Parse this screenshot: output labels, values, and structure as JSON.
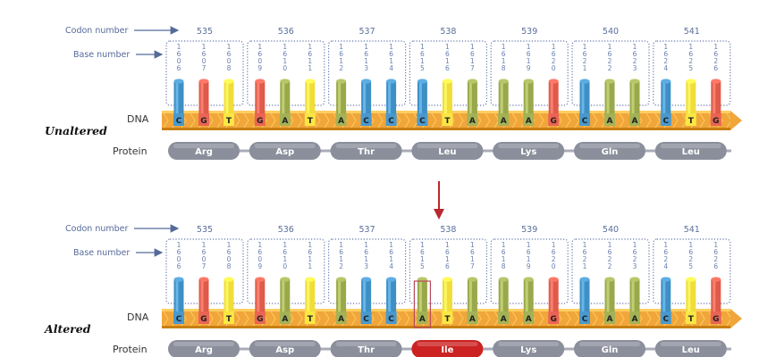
{
  "labels": {
    "codon_number": "Codon number",
    "base_number": "Base number",
    "dna": "DNA",
    "protein": "Protein"
  },
  "colors": {
    "A": "#9aa84c",
    "C": "#3f8fc4",
    "G": "#e05a4a",
    "T": "#f0dd3a",
    "protein_pill": "#8b8e9b",
    "mutant_pill": "#cc2222",
    "strand": "#f0a63a",
    "highlight": "#b84a5a",
    "arrow": "#b8282e"
  },
  "panels": [
    {
      "state": "Unaltered",
      "codons": [
        {
          "number": "535",
          "bases": [
            "C",
            "G",
            "T"
          ],
          "base_numbers": [
            "1606",
            "1607",
            "1608"
          ],
          "amino_acid": "Arg",
          "mutated": false
        },
        {
          "number": "536",
          "bases": [
            "G",
            "A",
            "T"
          ],
          "base_numbers": [
            "1609",
            "1610",
            "1611"
          ],
          "amino_acid": "Asp",
          "mutated": false
        },
        {
          "number": "537",
          "bases": [
            "A",
            "C",
            "C"
          ],
          "base_numbers": [
            "1612",
            "1613",
            "1614"
          ],
          "amino_acid": "Thr",
          "mutated": false
        },
        {
          "number": "538",
          "bases": [
            "C",
            "T",
            "A"
          ],
          "base_numbers": [
            "1615",
            "1616",
            "1617"
          ],
          "amino_acid": "Leu",
          "mutated": false
        },
        {
          "number": "539",
          "bases": [
            "A",
            "A",
            "G"
          ],
          "base_numbers": [
            "1618",
            "1619",
            "1620"
          ],
          "amino_acid": "Lys",
          "mutated": false
        },
        {
          "number": "540",
          "bases": [
            "C",
            "A",
            "A"
          ],
          "base_numbers": [
            "1621",
            "1622",
            "1623"
          ],
          "amino_acid": "Gln",
          "mutated": false
        },
        {
          "number": "541",
          "bases": [
            "C",
            "T",
            "G"
          ],
          "base_numbers": [
            "1624",
            "1625",
            "1626"
          ],
          "amino_acid": "Leu",
          "mutated": false
        }
      ]
    },
    {
      "state": "Altered",
      "codons": [
        {
          "number": "535",
          "bases": [
            "C",
            "G",
            "T"
          ],
          "base_numbers": [
            "1606",
            "1607",
            "1608"
          ],
          "amino_acid": "Arg",
          "mutated": false
        },
        {
          "number": "536",
          "bases": [
            "G",
            "A",
            "T"
          ],
          "base_numbers": [
            "1609",
            "1610",
            "1611"
          ],
          "amino_acid": "Asp",
          "mutated": false
        },
        {
          "number": "537",
          "bases": [
            "A",
            "C",
            "C"
          ],
          "base_numbers": [
            "1612",
            "1613",
            "1614"
          ],
          "amino_acid": "Thr",
          "mutated": false
        },
        {
          "number": "538",
          "bases": [
            "A",
            "T",
            "A"
          ],
          "base_numbers": [
            "1615",
            "1616",
            "1617"
          ],
          "amino_acid": "Ile",
          "mutated": true,
          "mutated_base_index": 0
        },
        {
          "number": "539",
          "bases": [
            "A",
            "A",
            "G"
          ],
          "base_numbers": [
            "1618",
            "1619",
            "1620"
          ],
          "amino_acid": "Lys",
          "mutated": false
        },
        {
          "number": "540",
          "bases": [
            "C",
            "A",
            "A"
          ],
          "base_numbers": [
            "1621",
            "1622",
            "1623"
          ],
          "amino_acid": "Gln",
          "mutated": false
        },
        {
          "number": "541",
          "bases": [
            "C",
            "T",
            "G"
          ],
          "base_numbers": [
            "1624",
            "1625",
            "1626"
          ],
          "amino_acid": "Leu",
          "mutated": false
        }
      ]
    }
  ]
}
